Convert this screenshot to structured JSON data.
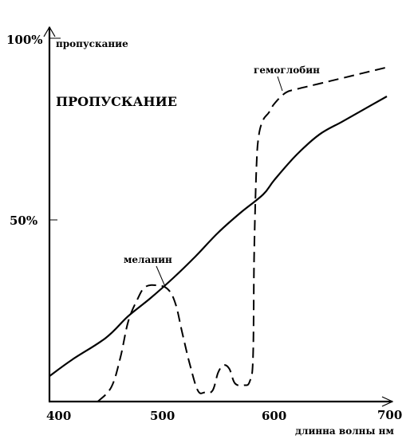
{
  "chart_data": {
    "type": "line",
    "title": "ПРОПУСКАНИЕ",
    "xlabel": "длинна волны нм",
    "ylabel": "пропускание",
    "xlim": [
      400,
      700
    ],
    "ylim": [
      0,
      100
    ],
    "x_ticks": [
      "400",
      "500",
      "600",
      "700"
    ],
    "y_ticks": [
      "50%",
      "100%"
    ],
    "grid": false,
    "series": [
      {
        "name": "меланин",
        "style": "solid",
        "x": [
          400,
          420,
          450,
          470,
          490,
          510,
          530,
          550,
          570,
          590,
          600,
          620,
          640,
          660,
          680,
          700
        ],
        "y": [
          7,
          11.5,
          17.5,
          23.5,
          28.5,
          34,
          40,
          46.5,
          52,
          57,
          61,
          68,
          73.5,
          77,
          80.5,
          84
        ]
      },
      {
        "name": "гемоглобин",
        "style": "dashed",
        "x": [
          443,
          455,
          463,
          470,
          478,
          485,
          495,
          505,
          512,
          518,
          525,
          532,
          538,
          545,
          550,
          555,
          560,
          565,
          573,
          578,
          581,
          582,
          584,
          586,
          590,
          595,
          600,
          610,
          620,
          640,
          660,
          680,
          700
        ],
        "y": [
          0,
          4,
          12,
          22,
          28,
          31.5,
          32,
          31,
          27,
          19,
          10,
          3,
          2.5,
          3,
          8,
          10,
          9,
          5,
          4.5,
          5.5,
          12,
          40,
          64,
          73,
          77.5,
          79.5,
          82,
          85,
          86,
          87.5,
          89,
          90.5,
          92
        ]
      }
    ],
    "annotations": [
      "меланин",
      "гемоглобин"
    ]
  }
}
